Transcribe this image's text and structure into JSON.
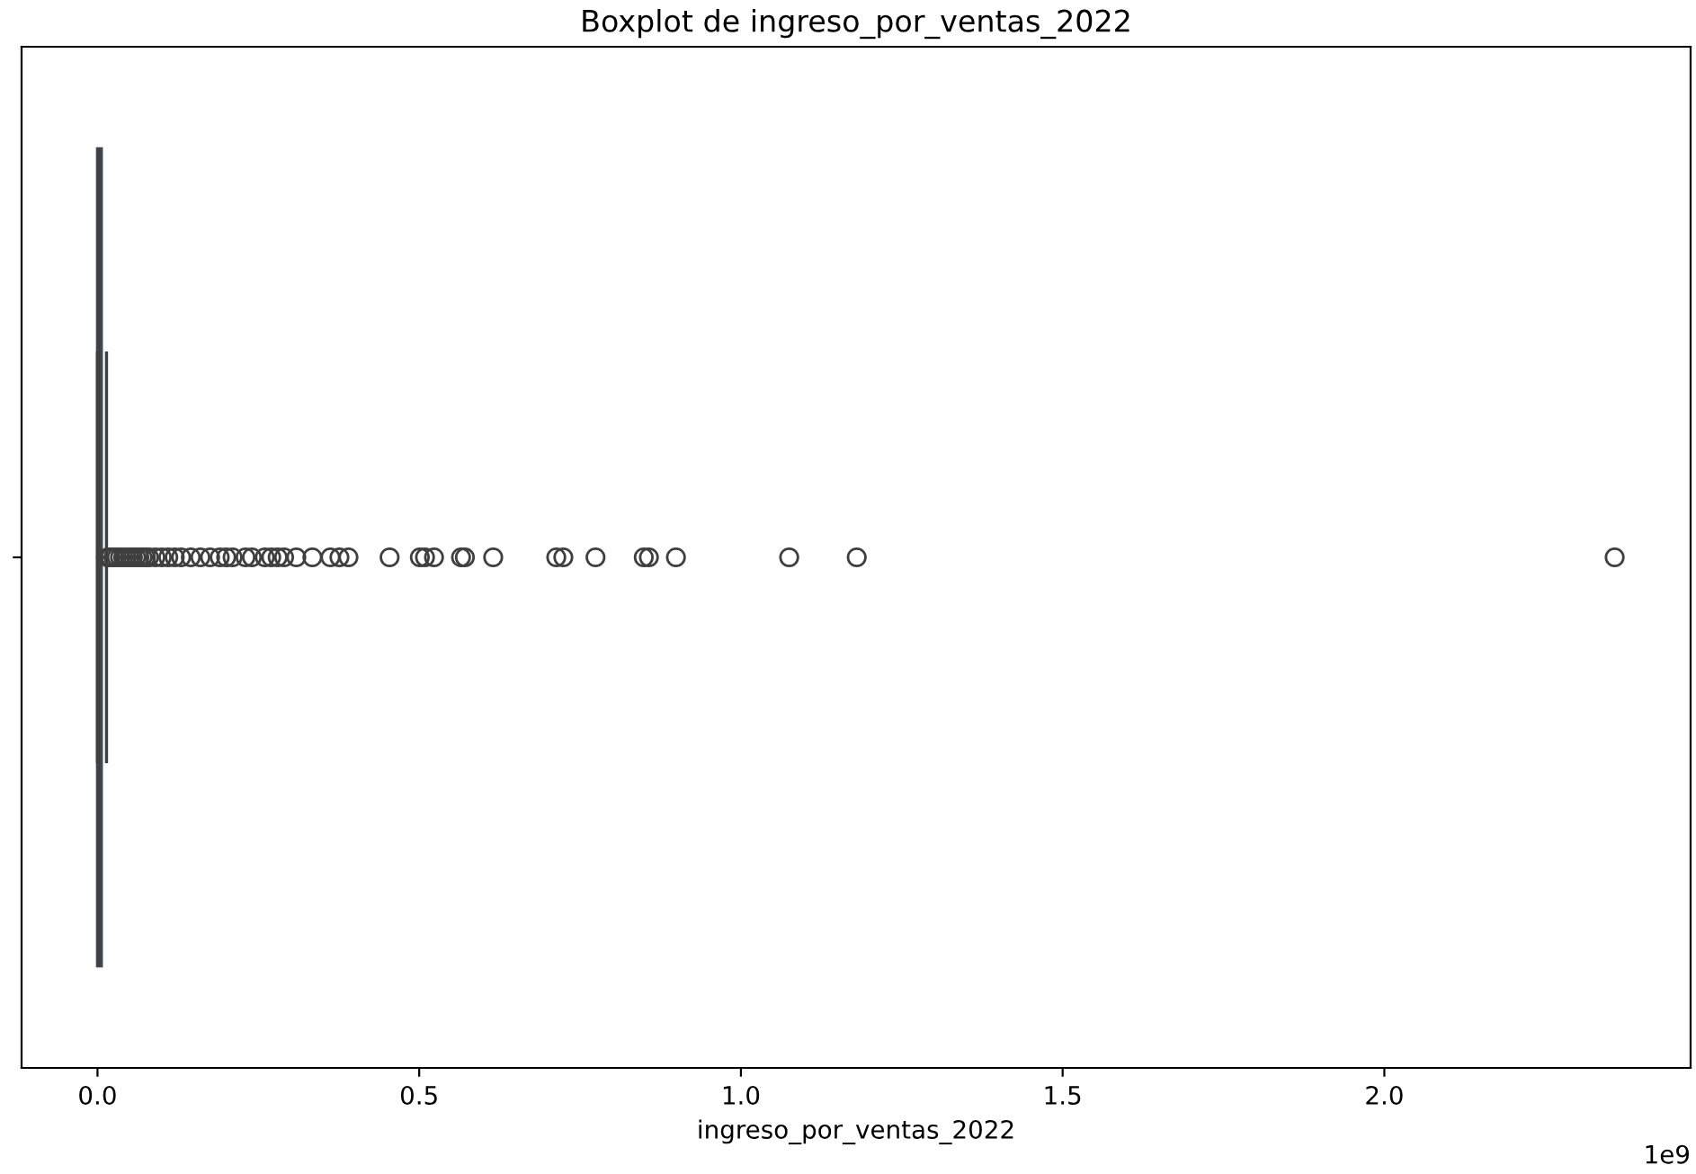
{
  "chart_data": {
    "type": "box",
    "title": "Boxplot de ingreso_por_ventas_2022",
    "xlabel": "ingreso_por_ventas_2022",
    "orientation": "horizontal",
    "categories": [
      null
    ],
    "color": "#3f4a55",
    "boxes": [
      {
        "low": 0,
        "q1": 0,
        "median": 0.002,
        "q3": 0.006,
        "high": 0.014,
        "outliers": [
          0.016,
          0.02,
          0.025,
          0.03,
          0.035,
          0.04,
          0.045,
          0.05,
          0.055,
          0.06,
          0.065,
          0.07,
          0.075,
          0.08,
          0.09,
          0.1,
          0.11,
          0.12,
          0.13,
          0.145,
          0.16,
          0.175,
          0.19,
          0.2,
          0.21,
          0.23,
          0.24,
          0.26,
          0.27,
          0.28,
          0.29,
          0.309,
          0.334,
          0.362,
          0.376,
          0.39,
          0.454,
          0.501,
          0.509,
          0.523,
          0.565,
          0.571,
          0.615,
          0.713,
          0.724,
          0.774,
          0.849,
          0.857,
          0.899,
          1.075,
          1.18,
          2.358
        ]
      }
    ],
    "xlim": [
      -0.118,
      2.476
    ],
    "xticks": [
      {
        "value": 0,
        "label": "0.0"
      },
      0.5,
      {
        "value": 1,
        "label": "1.0"
      },
      1.5,
      {
        "value": 2,
        "label": "2.0"
      }
    ],
    "annotations": [
      "1e9"
    ]
  }
}
